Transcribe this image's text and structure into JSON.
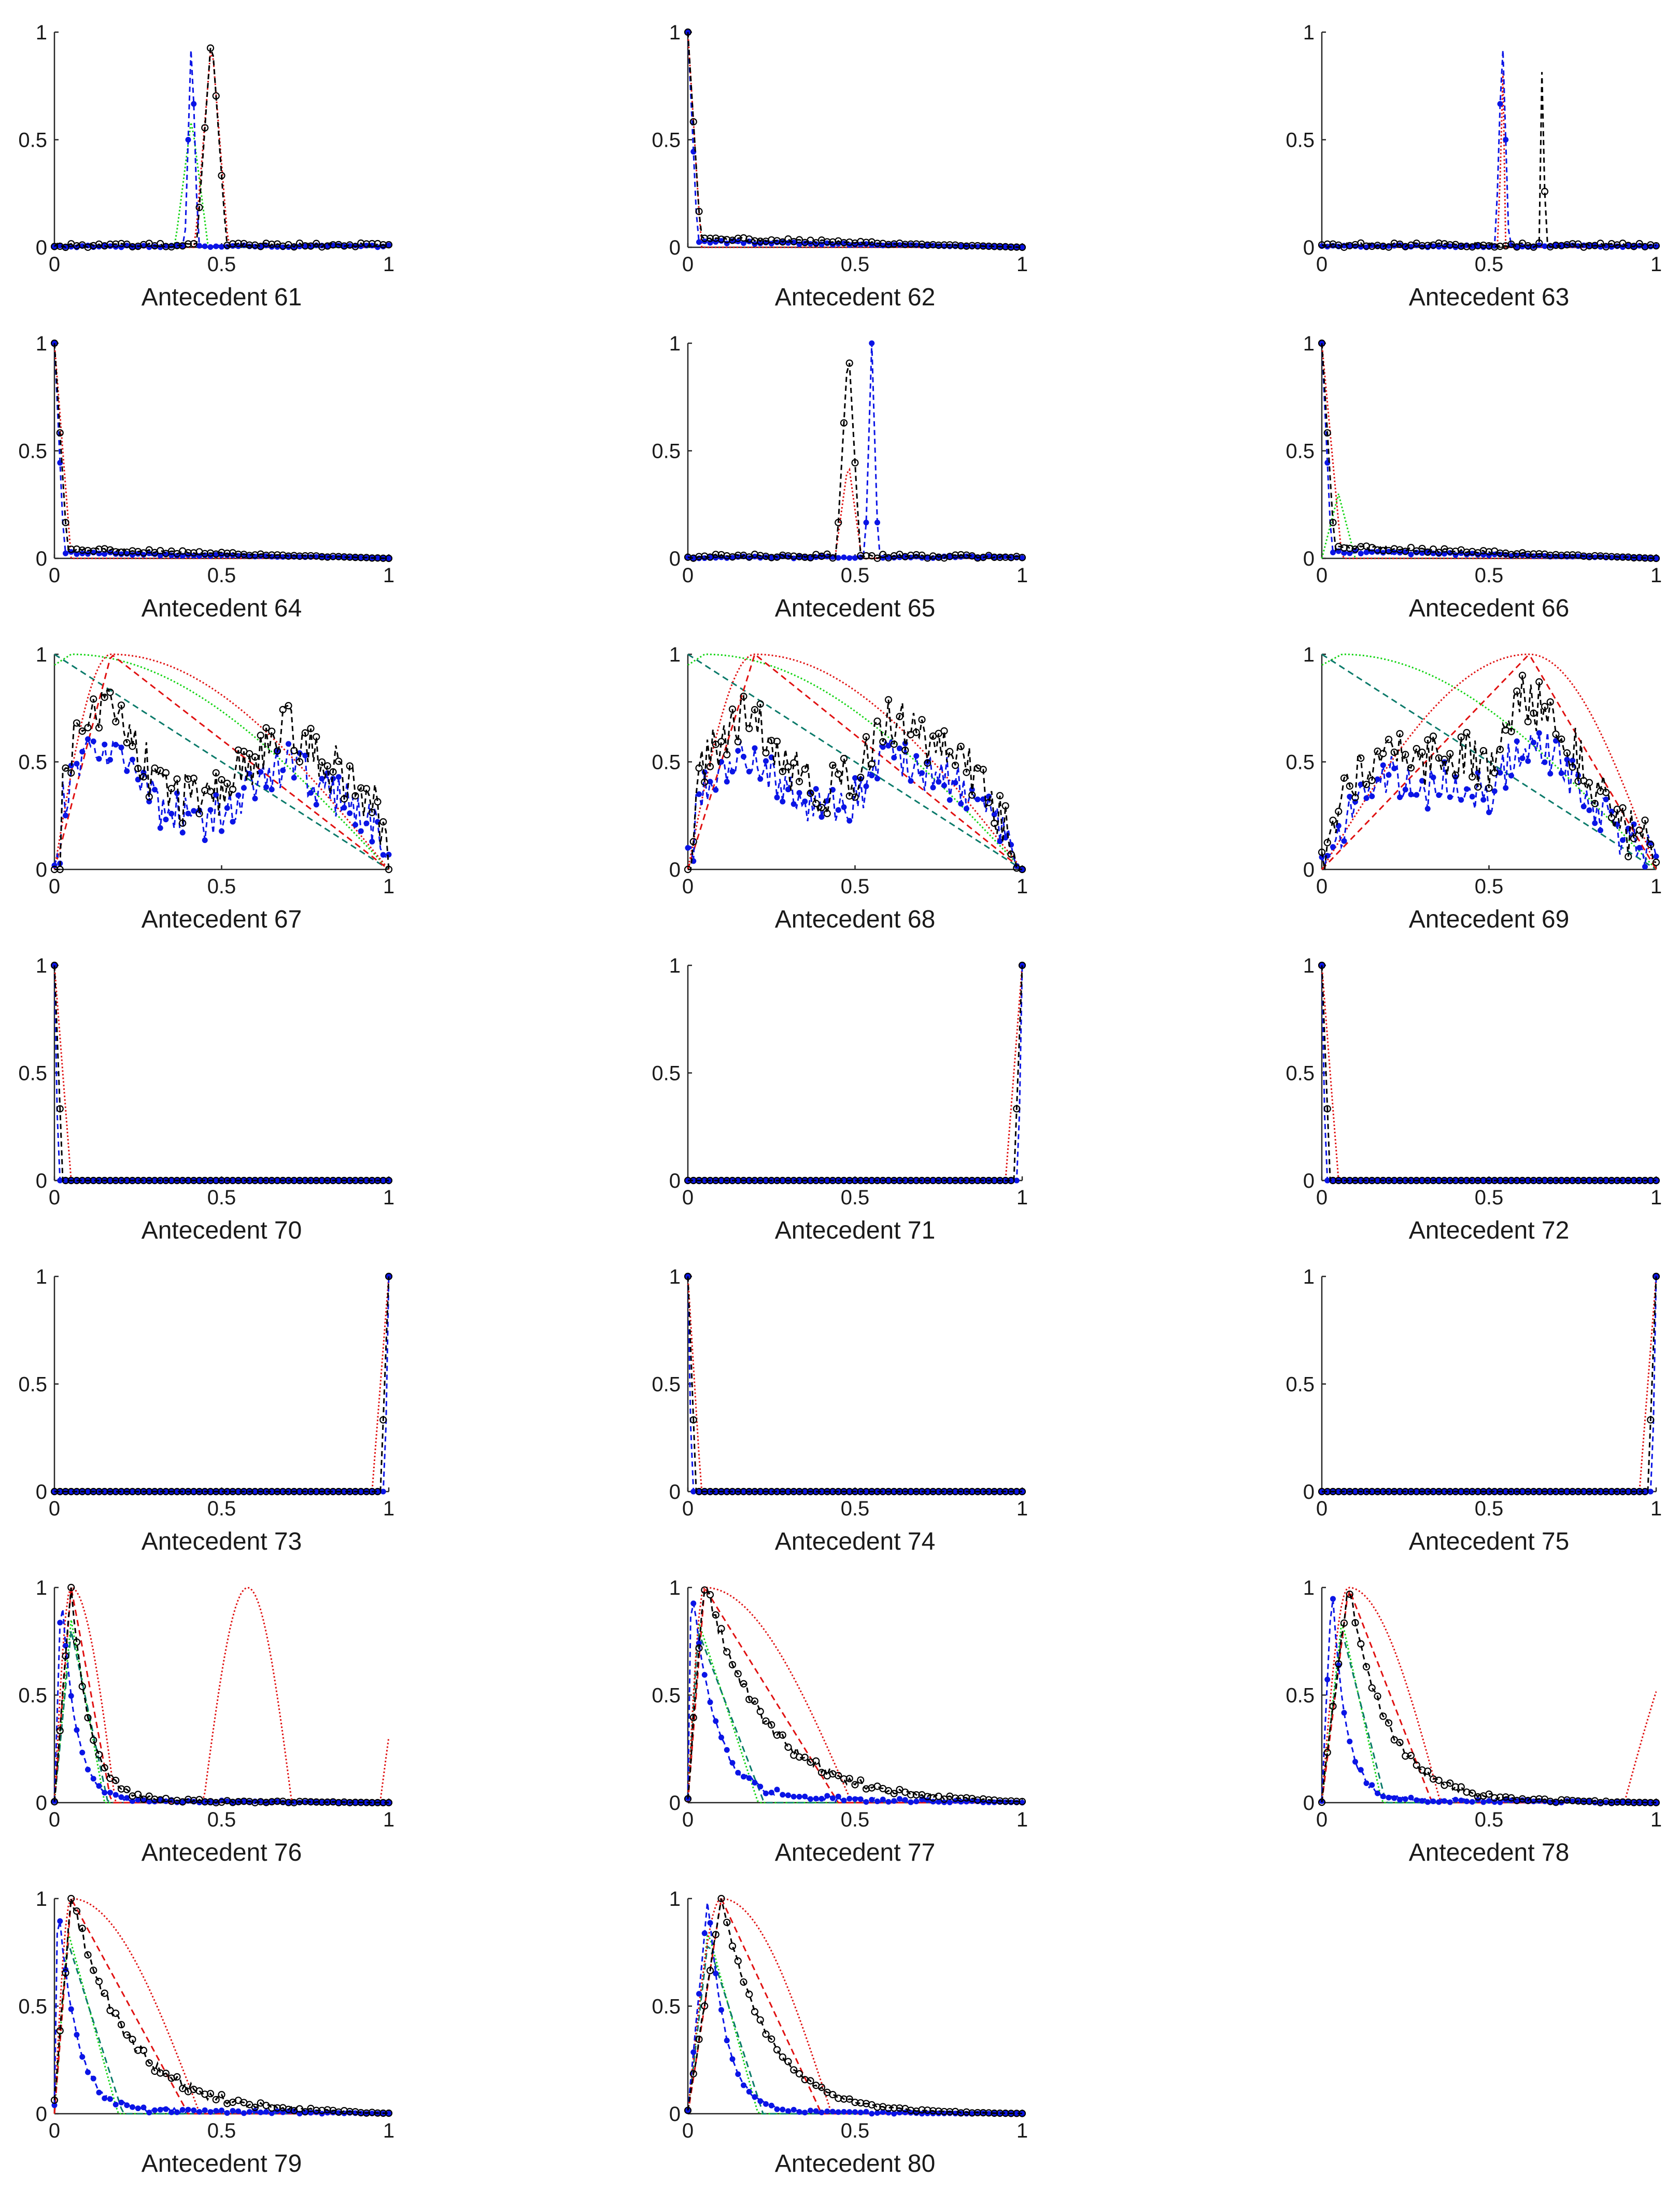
{
  "figure": {
    "colors": {
      "black": "#000000",
      "blue": "#0a14e6",
      "red": "#e01010",
      "green": "#12d412",
      "teal": "#0a7a6a"
    },
    "x_ticks": [
      "0",
      "0.5",
      "1"
    ],
    "y_ticks": [
      "0",
      "0.5",
      "1"
    ],
    "series_legend": [
      "black circles (dashed)",
      "blue dots (dashed)",
      "red dotted",
      "red dashed",
      "green dotted",
      "teal dashed"
    ]
  },
  "chart_data": [
    {
      "type": "line",
      "title": "Antecedent 61",
      "xlim": [
        0,
        1
      ],
      "ylim": [
        0,
        1
      ],
      "xticks": [
        0,
        0.5,
        1
      ],
      "yticks": [
        0,
        0.5,
        1
      ],
      "shape": "spike",
      "c": 0.47,
      "blue": 0.41,
      "red": 0.47,
      "w": 0.05,
      "green": 0.41,
      "greenW": 0.05
    },
    {
      "type": "line",
      "title": "Antecedent 62",
      "xlim": [
        0,
        1
      ],
      "ylim": [
        0,
        1
      ],
      "xticks": [
        0,
        0.5,
        1
      ],
      "yticks": [
        0,
        0.5,
        1
      ],
      "shape": "left",
      "redW": 0.04,
      "tail": 0.04
    },
    {
      "type": "line",
      "title": "Antecedent 63",
      "xlim": [
        0,
        1
      ],
      "ylim": [
        0,
        1
      ],
      "xticks": [
        0,
        0.5,
        1
      ],
      "yticks": [
        0,
        0.5,
        1
      ],
      "shape": "spike",
      "c": 0.66,
      "blue": 0.54,
      "red": 0.54,
      "w": 0.01
    },
    {
      "type": "line",
      "title": "Antecedent 64",
      "xlim": [
        0,
        1
      ],
      "ylim": [
        0,
        1
      ],
      "xticks": [
        0,
        0.5,
        1
      ],
      "yticks": [
        0,
        0.5,
        1
      ],
      "shape": "left",
      "redW": 0.05,
      "tail": 0.04
    },
    {
      "type": "line",
      "title": "Antecedent 65",
      "xlim": [
        0,
        1
      ],
      "ylim": [
        0,
        1
      ],
      "xticks": [
        0,
        0.5,
        1
      ],
      "yticks": [
        0,
        0.5,
        1
      ],
      "shape": "spike",
      "c": 0.48,
      "blue": 0.55,
      "red": 0.48,
      "w": 0.04,
      "redPeak": 0.45
    },
    {
      "type": "line",
      "title": "Antecedent 66",
      "xlim": [
        0,
        1
      ],
      "ylim": [
        0,
        1
      ],
      "xticks": [
        0,
        0.5,
        1
      ],
      "yticks": [
        0,
        0.5,
        1
      ],
      "shape": "left",
      "redW": 0.06,
      "tail": 0.05,
      "green": 0.05,
      "greenW": 0.05
    },
    {
      "type": "line",
      "title": "Antecedent 67",
      "xlim": [
        0,
        1
      ],
      "ylim": [
        0,
        1
      ],
      "xticks": [
        0,
        0.5,
        1
      ],
      "yticks": [
        0,
        0.5,
        1
      ],
      "shape": "broad",
      "peak": 0.17,
      "greenPeak": 0.05,
      "dots": [
        [
          0.02,
          0.4
        ],
        [
          0.1,
          0.78
        ],
        [
          0.2,
          0.72
        ],
        [
          0.3,
          0.4
        ],
        [
          0.45,
          0.28
        ],
        [
          0.6,
          0.52
        ],
        [
          0.7,
          0.65
        ],
        [
          0.8,
          0.5
        ],
        [
          0.9,
          0.4
        ],
        [
          0.97,
          0.25
        ],
        [
          1,
          0.02
        ]
      ]
    },
    {
      "type": "line",
      "title": "Antecedent 68",
      "xlim": [
        0,
        1
      ],
      "ylim": [
        0,
        1
      ],
      "xticks": [
        0,
        0.5,
        1
      ],
      "yticks": [
        0,
        0.5,
        1
      ],
      "shape": "broad",
      "peak": 0.2,
      "greenPeak": 0.05,
      "dots": [
        [
          0.02,
          0.4
        ],
        [
          0.1,
          0.6
        ],
        [
          0.2,
          0.72
        ],
        [
          0.3,
          0.5
        ],
        [
          0.4,
          0.35
        ],
        [
          0.5,
          0.45
        ],
        [
          0.6,
          0.7
        ],
        [
          0.7,
          0.62
        ],
        [
          0.8,
          0.55
        ],
        [
          0.9,
          0.35
        ],
        [
          0.97,
          0.1
        ],
        [
          1,
          0.02
        ]
      ]
    },
    {
      "type": "line",
      "title": "Antecedent 69",
      "xlim": [
        0,
        1
      ],
      "ylim": [
        0,
        1
      ],
      "xticks": [
        0,
        0.5,
        1
      ],
      "yticks": [
        0,
        0.5,
        1
      ],
      "shape": "broad",
      "peak": 0.62,
      "greenPeak": 0.06,
      "dots": [
        [
          0.02,
          0.1
        ],
        [
          0.1,
          0.45
        ],
        [
          0.2,
          0.6
        ],
        [
          0.3,
          0.5
        ],
        [
          0.4,
          0.55
        ],
        [
          0.5,
          0.45
        ],
        [
          0.6,
          0.8
        ],
        [
          0.7,
          0.7
        ],
        [
          0.8,
          0.45
        ],
        [
          0.9,
          0.2
        ],
        [
          0.97,
          0.1
        ],
        [
          1,
          0.02
        ]
      ]
    },
    {
      "type": "line",
      "title": "Antecedent 70",
      "xlim": [
        0,
        1
      ],
      "ylim": [
        0,
        1
      ],
      "xticks": [
        0,
        0.5,
        1
      ],
      "yticks": [
        0,
        0.5,
        1
      ],
      "shape": "edge0",
      "redW": 0.05
    },
    {
      "type": "line",
      "title": "Antecedent 71",
      "xlim": [
        0,
        1
      ],
      "ylim": [
        0,
        1
      ],
      "xticks": [
        0,
        0.5,
        1
      ],
      "yticks": [
        0,
        0.5,
        1
      ],
      "shape": "edge1",
      "redW": 0.05
    },
    {
      "type": "line",
      "title": "Antecedent 72",
      "xlim": [
        0,
        1
      ],
      "ylim": [
        0,
        1
      ],
      "xticks": [
        0,
        0.5,
        1
      ],
      "yticks": [
        0,
        0.5,
        1
      ],
      "shape": "edge0",
      "redW": 0.05
    },
    {
      "type": "line",
      "title": "Antecedent 73",
      "xlim": [
        0,
        1
      ],
      "ylim": [
        0,
        1
      ],
      "xticks": [
        0,
        0.5,
        1
      ],
      "yticks": [
        0,
        0.5,
        1
      ],
      "shape": "edge1",
      "redW": 0.05
    },
    {
      "type": "line",
      "title": "Antecedent 74",
      "xlim": [
        0,
        1
      ],
      "ylim": [
        0,
        1
      ],
      "xticks": [
        0,
        0.5,
        1
      ],
      "yticks": [
        0,
        0.5,
        1
      ],
      "shape": "edge0",
      "redW": 0.04
    },
    {
      "type": "line",
      "title": "Antecedent 75",
      "xlim": [
        0,
        1
      ],
      "ylim": [
        0,
        1
      ],
      "xticks": [
        0,
        0.5,
        1
      ],
      "yticks": [
        0,
        0.5,
        1
      ],
      "shape": "edge1",
      "redW": 0.05
    },
    {
      "type": "line",
      "title": "Antecedent 76",
      "xlim": [
        0,
        1
      ],
      "ylim": [
        0,
        1
      ],
      "xticks": [
        0,
        0.5,
        1
      ],
      "yticks": [
        0,
        0.5,
        1
      ],
      "shape": "skew",
      "bp": 0.02,
      "bw": 0.12,
      "rp": 0.05,
      "rw": 0.12,
      "gp": 0.05,
      "gw": 0.1,
      "tail": 0.03,
      "btail": 0.02
    },
    {
      "type": "line",
      "title": "Antecedent 77",
      "xlim": [
        0,
        1
      ],
      "ylim": [
        0,
        1
      ],
      "xticks": [
        0,
        0.5,
        1
      ],
      "yticks": [
        0,
        0.5,
        1
      ],
      "shape": "skew",
      "bp": 0.01,
      "bw": 0.2,
      "rp": 0.05,
      "rw": 0.4,
      "gp": 0.03,
      "gw": 0.18,
      "tail": 0.08,
      "btail": 0.05
    },
    {
      "type": "line",
      "title": "Antecedent 78",
      "xlim": [
        0,
        1
      ],
      "ylim": [
        0,
        1
      ],
      "xticks": [
        0,
        0.5,
        1
      ],
      "yticks": [
        0,
        0.5,
        1
      ],
      "shape": "skew",
      "bp": 0.03,
      "bw": 0.12,
      "rp": 0.08,
      "rw": 0.25,
      "gp": 0.06,
      "gw": 0.12,
      "tail": 0.05,
      "btail": 0.03
    },
    {
      "type": "line",
      "title": "Antecedent 79",
      "xlim": [
        0,
        1
      ],
      "ylim": [
        0,
        1
      ],
      "xticks": [
        0,
        0.5,
        1
      ],
      "yticks": [
        0,
        0.5,
        1
      ],
      "shape": "skew",
      "bp": 0.01,
      "bw": 0.15,
      "rp": 0.05,
      "rw": 0.35,
      "gp": 0.04,
      "gw": 0.15,
      "tail": 0.08,
      "btail": 0.04
    },
    {
      "type": "line",
      "title": "Antecedent 80",
      "xlim": [
        0,
        1
      ],
      "ylim": [
        0,
        1
      ],
      "xticks": [
        0,
        0.5,
        1
      ],
      "yticks": [
        0,
        0.5,
        1
      ],
      "shape": "skew",
      "bp": 0.06,
      "bw": 0.15,
      "rp": 0.1,
      "rw": 0.3,
      "gp": 0.06,
      "gw": 0.15,
      "tail": 0.03,
      "btail": 0.02
    }
  ]
}
